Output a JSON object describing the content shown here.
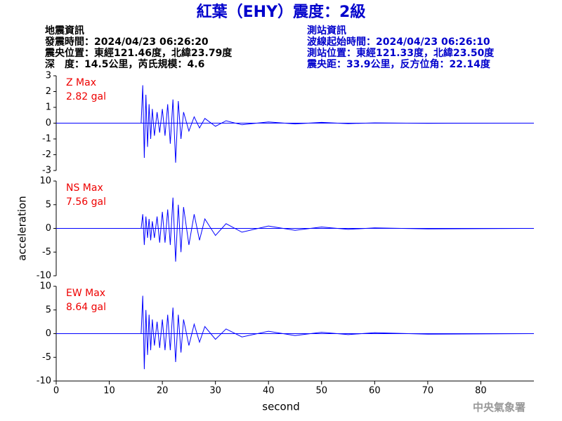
{
  "header": {
    "title": "紅葉（EHY）震度：2級",
    "left": [
      "地震資訊",
      "發震時間：2024/04/23 06:26:20",
      "震央位置：東經121.46度，北緯23.79度",
      "深　度：14.5公里，芮氏規模：4.6"
    ],
    "right": [
      "測站資訊",
      "波線起始時間：2024/04/23 06:26:10",
      "測站位置：東經121.33度，北緯23.50度",
      "震央距：33.9公里，反方位角：22.14度"
    ],
    "footer": "中央氣象署"
  },
  "chart_data": [
    {
      "type": "line",
      "label": "Z Max",
      "max_label": "2.82 gal",
      "xlim": [
        0,
        90
      ],
      "ylim": [
        -3,
        3
      ],
      "yticks": [
        3,
        2,
        1,
        0,
        -1,
        -2,
        -3
      ],
      "x": [
        0,
        16,
        16.3,
        16.6,
        16.9,
        17.2,
        17.5,
        17.8,
        18.1,
        18.5,
        19,
        19.5,
        20,
        20.5,
        21,
        21.5,
        22,
        22.5,
        23,
        23.5,
        24,
        25,
        26,
        27,
        28,
        30,
        32,
        35,
        40,
        45,
        50,
        55,
        60,
        70,
        89
      ],
      "series": [
        {
          "name": "Z",
          "color": "#0000ff",
          "values": [
            0,
            0,
            2.4,
            -2.2,
            1.8,
            -1.5,
            1.2,
            -1.0,
            0.9,
            -0.8,
            0.7,
            -0.6,
            0.9,
            -0.8,
            1.2,
            -1.3,
            1.5,
            -2.5,
            1.4,
            -1.0,
            0.7,
            -0.5,
            0.4,
            -0.3,
            0.3,
            -0.2,
            0.15,
            -0.1,
            0.08,
            -0.05,
            0.05,
            -0.03,
            0.02,
            -0.01,
            0
          ]
        }
      ]
    },
    {
      "type": "line",
      "label": "NS Max",
      "max_label": "7.56 gal",
      "ylabel": "acceleration",
      "xlim": [
        0,
        90
      ],
      "ylim": [
        -10,
        10
      ],
      "yticks": [
        10,
        5,
        0,
        -5,
        -10
      ],
      "x": [
        0,
        16,
        16.3,
        16.6,
        16.9,
        17.2,
        17.5,
        17.8,
        18.1,
        18.5,
        19,
        19.5,
        20,
        20.5,
        21,
        21.5,
        22,
        22.5,
        23,
        23.5,
        24,
        25,
        26,
        27,
        28,
        30,
        32,
        35,
        40,
        45,
        50,
        55,
        60,
        70,
        89
      ],
      "series": [
        {
          "name": "NS",
          "color": "#0000ff",
          "values": [
            0,
            0,
            3,
            -3.5,
            2.5,
            -2,
            2,
            -2.5,
            1.5,
            -2,
            2.5,
            -3,
            3.5,
            -3,
            4,
            -3.5,
            6.5,
            -7,
            5,
            -5,
            4.5,
            -3.5,
            3,
            -2.5,
            2,
            -1.5,
            1,
            -0.8,
            0.5,
            -0.4,
            0.3,
            -0.2,
            0.1,
            -0.1,
            0
          ]
        }
      ]
    },
    {
      "type": "line",
      "label": "EW Max",
      "max_label": "8.64 gal",
      "xlabel": "second",
      "xlim": [
        0,
        90
      ],
      "ylim": [
        -10,
        10
      ],
      "yticks": [
        10,
        5,
        0,
        -5,
        -10
      ],
      "xticks": [
        0,
        10,
        20,
        30,
        40,
        50,
        60,
        70,
        80
      ],
      "x": [
        0,
        16,
        16.3,
        16.6,
        16.9,
        17.2,
        17.5,
        17.8,
        18.1,
        18.5,
        19,
        19.5,
        20,
        20.5,
        21,
        21.5,
        22,
        22.5,
        23,
        23.5,
        24,
        25,
        26,
        27,
        28,
        30,
        32,
        35,
        40,
        45,
        50,
        55,
        60,
        70,
        89
      ],
      "series": [
        {
          "name": "EW",
          "color": "#0000ff",
          "values": [
            0,
            0,
            8,
            -7.5,
            5,
            -4.5,
            4,
            -3.5,
            3,
            -2.5,
            2.5,
            -3,
            3,
            -3.5,
            4,
            -3.5,
            5.5,
            -6,
            4,
            -4,
            3,
            -2.5,
            2,
            -1.8,
            1.5,
            -1.2,
            1,
            -0.7,
            0.5,
            -0.4,
            0.3,
            -0.2,
            0.2,
            -0.1,
            0
          ]
        }
      ]
    }
  ]
}
